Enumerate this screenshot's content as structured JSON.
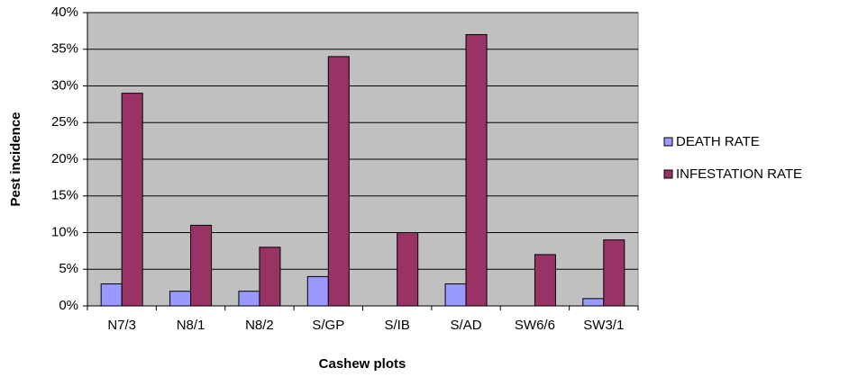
{
  "chart_data": {
    "type": "bar",
    "x_label": "Cashew plots",
    "y_label": "Pest incidence",
    "categories": [
      "N7/3",
      "N8/1",
      "N8/2",
      "S/GP",
      "S/IB",
      "S/AD",
      "SW6/6",
      "SW3/1"
    ],
    "series": [
      {
        "name": "DEATH RATE",
        "color": "#9999ff",
        "values": [
          3,
          2,
          2,
          4,
          0,
          3,
          0,
          1
        ]
      },
      {
        "name": "INFESTATION RATE",
        "color": "#993366",
        "values": [
          29,
          11,
          8,
          34,
          10,
          37,
          7,
          9
        ]
      }
    ],
    "ylim": [
      0,
      40
    ],
    "yticks": [
      {
        "value": 0,
        "label": "0%"
      },
      {
        "value": 5,
        "label": "5%"
      },
      {
        "value": 10,
        "label": "10%"
      },
      {
        "value": 15,
        "label": "15%"
      },
      {
        "value": 20,
        "label": "20%"
      },
      {
        "value": 25,
        "label": "25%"
      },
      {
        "value": 30,
        "label": "30%"
      },
      {
        "value": 35,
        "label": "35%"
      },
      {
        "value": 40,
        "label": "40%"
      }
    ],
    "grid": true,
    "plot_background": "#c0c0c0",
    "legend": "right"
  }
}
